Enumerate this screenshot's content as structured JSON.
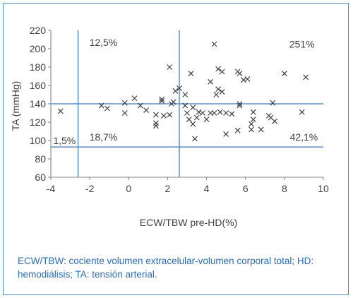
{
  "caption": "ECW/TBW: cociente volumen extracelular-volumen corporal total; HD: hemodiálisis; TA: tensión arterial.",
  "chart_data": {
    "type": "scatter",
    "xlabel": "ECW/TBW pre-HD(%)",
    "ylabel": "TA (mmHg)",
    "xlim": [
      -4,
      10
    ],
    "ylim": [
      60,
      220
    ],
    "xticks": [
      -4,
      -2,
      0,
      2,
      4,
      6,
      8,
      10
    ],
    "yticks": [
      60,
      80,
      100,
      120,
      140,
      160,
      180,
      200,
      220
    ],
    "grid": false,
    "marker": "x",
    "marker_color": "#404040",
    "reference_lines": {
      "color": "#5b8fc9",
      "vertical_x": [
        -2.6,
        2.6
      ],
      "horizontal_y": [
        140,
        93
      ]
    },
    "annotations": [
      {
        "text": "12,5%",
        "x": -1.3,
        "y": 207
      },
      {
        "text": "251%",
        "x": 8.9,
        "y": 205
      },
      {
        "text": "1,5%",
        "x": -3.3,
        "y": 100
      },
      {
        "text": "18,7%",
        "x": -1.3,
        "y": 104
      },
      {
        "text": "42,1%",
        "x": 9.0,
        "y": 104
      }
    ],
    "points": [
      [
        -3.5,
        132
      ],
      [
        -1.4,
        138
      ],
      [
        -1.1,
        135
      ],
      [
        -0.2,
        130
      ],
      [
        -0.2,
        141
      ],
      [
        0.3,
        146
      ],
      [
        0.6,
        138
      ],
      [
        0.9,
        133
      ],
      [
        1.4,
        128
      ],
      [
        1.4,
        119
      ],
      [
        1.4,
        116
      ],
      [
        1.7,
        145
      ],
      [
        1.7,
        143
      ],
      [
        1.8,
        127
      ],
      [
        2.1,
        180
      ],
      [
        2.1,
        128
      ],
      [
        2.2,
        140
      ],
      [
        2.3,
        142
      ],
      [
        2.4,
        154
      ],
      [
        2.6,
        157
      ],
      [
        2.9,
        150
      ],
      [
        2.9,
        138
      ],
      [
        3.0,
        130
      ],
      [
        3.1,
        123
      ],
      [
        3.2,
        173
      ],
      [
        3.3,
        136
      ],
      [
        3.3,
        118
      ],
      [
        3.4,
        102
      ],
      [
        3.5,
        125
      ],
      [
        3.6,
        131
      ],
      [
        3.8,
        130
      ],
      [
        4.0,
        123
      ],
      [
        4.2,
        130
      ],
      [
        4.2,
        164
      ],
      [
        4.4,
        205
      ],
      [
        4.4,
        130
      ],
      [
        4.5,
        150
      ],
      [
        4.6,
        178
      ],
      [
        4.6,
        156
      ],
      [
        4.7,
        131
      ],
      [
        4.8,
        175
      ],
      [
        4.8,
        153
      ],
      [
        5.0,
        107
      ],
      [
        5.0,
        130
      ],
      [
        5.3,
        129
      ],
      [
        5.6,
        175
      ],
      [
        5.6,
        111
      ],
      [
        5.7,
        173
      ],
      [
        5.7,
        140
      ],
      [
        5.7,
        138
      ],
      [
        5.9,
        166
      ],
      [
        6.1,
        167
      ],
      [
        6.3,
        112
      ],
      [
        6.3,
        118
      ],
      [
        6.4,
        123
      ],
      [
        6.4,
        131
      ],
      [
        6.8,
        112
      ],
      [
        7.2,
        127
      ],
      [
        7.3,
        125
      ],
      [
        7.4,
        141
      ],
      [
        7.5,
        121
      ],
      [
        8.0,
        173
      ],
      [
        8.9,
        131
      ],
      [
        9.1,
        169
      ]
    ]
  }
}
